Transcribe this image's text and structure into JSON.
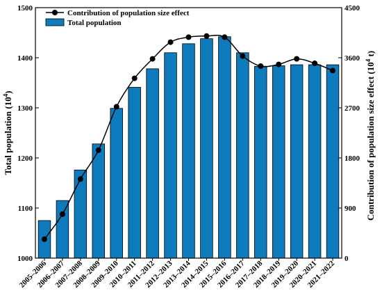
{
  "chart_data": {
    "type": "bar+line",
    "categories": [
      "2005–2006",
      "2006–2007",
      "2007–2008",
      "2008–2009",
      "2009–2010",
      "2010–2011",
      "2011–2012",
      "2012–2013",
      "2013–2014",
      "2014–2015",
      "2015–2016",
      "2016–2017",
      "2017–2018",
      "2018–2019",
      "2019–2020",
      "2020–2021",
      "2021–2022"
    ],
    "series": [
      {
        "name": "Total population",
        "type": "bar",
        "axis": "left",
        "color": "#0e7bbd",
        "values": [
          1075,
          1115,
          1176,
          1228,
          1299,
          1341,
          1378,
          1410,
          1428,
          1438,
          1442,
          1410,
          1383,
          1384,
          1386,
          1386,
          1386
        ]
      },
      {
        "name": "Contribution of population size effect",
        "type": "line",
        "axis": "right",
        "color": "#000000",
        "values": [
          340,
          790,
          1420,
          1940,
          2720,
          3230,
          3580,
          3880,
          3970,
          3990,
          3970,
          3630,
          3450,
          3480,
          3580,
          3500,
          3370
        ]
      }
    ],
    "left_axis": {
      "label": "Total population (10",
      "label_sup": "4",
      "label_end": ")",
      "ylim": [
        1000,
        1500
      ],
      "ticks": [
        "1000",
        "1100",
        "1200",
        "1300",
        "1400",
        "1500"
      ]
    },
    "right_axis": {
      "label": "Contribution of population size effect (10",
      "label_sup": "4",
      "label_end": " t)",
      "ylim": [
        0,
        4500
      ],
      "ticks": [
        "0",
        "900",
        "1800",
        "2700",
        "3600",
        "4500"
      ]
    },
    "legend": {
      "placement": "top-left",
      "entries": [
        "Contribution of population size effect",
        "Total population"
      ]
    },
    "grid": false
  }
}
